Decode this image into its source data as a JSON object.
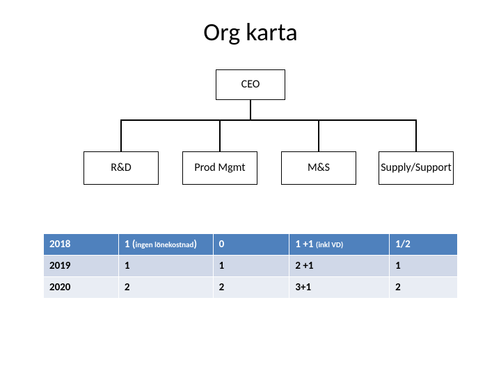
{
  "title": "Org karta",
  "org": {
    "root": {
      "label": "CEO"
    },
    "children": [
      {
        "label": "R&D"
      },
      {
        "label": "Prod Mgmt"
      },
      {
        "label": "M&S"
      },
      {
        "label": "Supply/Support"
      }
    ]
  },
  "table": {
    "rows": [
      {
        "style": "blue",
        "cells": [
          {
            "main": "2018"
          },
          {
            "main": "1 (",
            "sub": "ingen lönekostnad",
            "tail": ")"
          },
          {
            "main": "0"
          },
          {
            "main": "1 +1 ",
            "sub": "(inkl VD)"
          },
          {
            "main": "1/2"
          }
        ]
      },
      {
        "style": "light",
        "cells": [
          {
            "main": "2019"
          },
          {
            "main": "1"
          },
          {
            "main": "1"
          },
          {
            "main": "2 +1"
          },
          {
            "main": "1"
          }
        ]
      },
      {
        "style": "med",
        "cells": [
          {
            "main": "2020"
          },
          {
            "main": "2"
          },
          {
            "main": "2"
          },
          {
            "main": "3+1"
          },
          {
            "main": "2"
          }
        ]
      }
    ]
  },
  "colors": {
    "header_row": "#4f81bd",
    "row_light": "#d0d8e8",
    "row_med": "#e9edf4",
    "background": "#ffffff",
    "text": "#000000",
    "node_border": "#000000"
  }
}
